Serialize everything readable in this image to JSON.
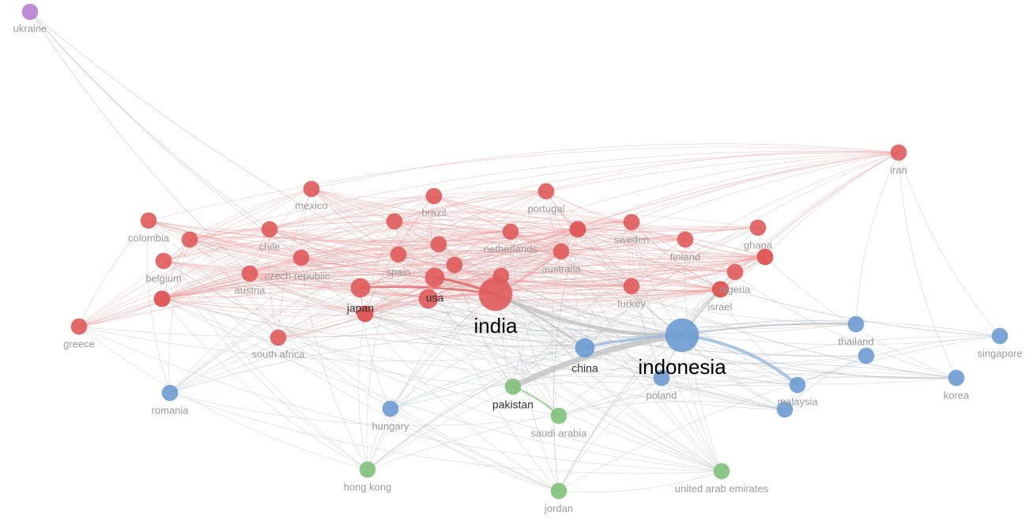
{
  "colors": {
    "red": "#e05a5a",
    "blue": "#6b9bd1",
    "green": "#80c17a",
    "purple": "#b57fd0",
    "edge_gray": "#bdbdbd",
    "edge_red": "#ef9a9a",
    "edge_blue": "#8fb4de",
    "edge_green": "#9ccf97"
  },
  "nodes": [
    {
      "id": "ukraine",
      "label": "ukraine",
      "cluster": "purple",
      "size": "s",
      "emph": "none"
    },
    {
      "id": "iran",
      "label": "iran",
      "cluster": "red",
      "size": "s",
      "emph": "none"
    },
    {
      "id": "mexico",
      "label": "mexico",
      "cluster": "red",
      "size": "s",
      "emph": "none"
    },
    {
      "id": "brazil",
      "label": "brazil",
      "cluster": "red",
      "size": "s",
      "emph": "none"
    },
    {
      "id": "portugal",
      "label": "portugal",
      "cluster": "red",
      "size": "s",
      "emph": "none"
    },
    {
      "id": "colombia",
      "label": "colombia",
      "cluster": "red",
      "size": "s",
      "emph": "none"
    },
    {
      "id": "chile",
      "label": "chile",
      "cluster": "red",
      "size": "s",
      "emph": "none"
    },
    {
      "id": "netherlands",
      "label": "netherlands",
      "cluster": "red",
      "size": "s",
      "emph": "none"
    },
    {
      "id": "sweden",
      "label": "sweden",
      "cluster": "red",
      "size": "s",
      "emph": "none"
    },
    {
      "id": "ghana",
      "label": "ghana",
      "cluster": "red",
      "size": "s",
      "emph": "none"
    },
    {
      "id": "finland",
      "label": "finland",
      "cluster": "red",
      "size": "s",
      "emph": "none"
    },
    {
      "id": "belgium",
      "label": "belgium",
      "cluster": "red",
      "size": "s",
      "emph": "none"
    },
    {
      "id": "czech",
      "label": "czech republic",
      "cluster": "red",
      "size": "s",
      "emph": "none"
    },
    {
      "id": "spain",
      "label": "spain",
      "cluster": "red",
      "size": "s",
      "emph": "none"
    },
    {
      "id": "australia",
      "label": "australia",
      "cluster": "red",
      "size": "s",
      "emph": "none"
    },
    {
      "id": "austria",
      "label": "austria",
      "cluster": "red",
      "size": "s",
      "emph": "none"
    },
    {
      "id": "nigeria",
      "label": "nigeria",
      "cluster": "red",
      "size": "s",
      "emph": "none"
    },
    {
      "id": "usa",
      "label": "usa",
      "cluster": "red",
      "size": "m",
      "emph": "dark"
    },
    {
      "id": "japan",
      "label": "japan",
      "cluster": "red",
      "size": "m",
      "emph": "dark"
    },
    {
      "id": "turkey",
      "label": "turkey",
      "cluster": "red",
      "size": "s",
      "emph": "none"
    },
    {
      "id": "israel",
      "label": "israel",
      "cluster": "red",
      "size": "s",
      "emph": "none"
    },
    {
      "id": "india",
      "label": "india",
      "cluster": "red",
      "size": "xl",
      "emph": "big"
    },
    {
      "id": "greece",
      "label": "greece",
      "cluster": "red",
      "size": "s",
      "emph": "none"
    },
    {
      "id": "south_africa",
      "label": "south africa",
      "cluster": "red",
      "size": "s",
      "emph": "none"
    },
    {
      "id": "u_de",
      "label": "",
      "cluster": "red",
      "size": "s",
      "emph": "none"
    },
    {
      "id": "u_vn",
      "label": "",
      "cluster": "red",
      "size": "s",
      "emph": "none"
    },
    {
      "id": "u_ca",
      "label": "",
      "cluster": "red",
      "size": "s",
      "emph": "none"
    },
    {
      "id": "u_fr",
      "label": "",
      "cluster": "red",
      "size": "s",
      "emph": "none"
    },
    {
      "id": "u_ie",
      "label": "",
      "cluster": "red",
      "size": "s",
      "emph": "none"
    },
    {
      "id": "u_ch",
      "label": "",
      "cluster": "red",
      "size": "s",
      "emph": "none"
    },
    {
      "id": "u_no",
      "label": "",
      "cluster": "red",
      "size": "s",
      "emph": "none"
    },
    {
      "id": "u_dk",
      "label": "",
      "cluster": "red",
      "size": "s",
      "emph": "none"
    },
    {
      "id": "u_uk",
      "label": "",
      "cluster": "red",
      "size": "m",
      "emph": "none"
    },
    {
      "id": "u_it",
      "label": "",
      "cluster": "red",
      "size": "s",
      "emph": "none"
    },
    {
      "id": "u_pe",
      "label": "",
      "cluster": "red",
      "size": "s",
      "emph": "none"
    },
    {
      "id": "u_eg",
      "label": "",
      "cluster": "red",
      "size": "s",
      "emph": "none"
    },
    {
      "id": "u_ke",
      "label": "",
      "cluster": "red",
      "size": "s",
      "emph": "none"
    },
    {
      "id": "u_nz",
      "label": "",
      "cluster": "red",
      "size": "s",
      "emph": "none"
    },
    {
      "id": "u_pk2",
      "label": "",
      "cluster": "red",
      "size": "s",
      "emph": "none"
    },
    {
      "id": "thailand",
      "label": "thailand",
      "cluster": "blue",
      "size": "s",
      "emph": "none"
    },
    {
      "id": "singapore",
      "label": "singapore",
      "cluster": "blue",
      "size": "s",
      "emph": "none"
    },
    {
      "id": "indonesia",
      "label": "indonesia",
      "cluster": "blue",
      "size": "xl",
      "emph": "big"
    },
    {
      "id": "china",
      "label": "china",
      "cluster": "blue",
      "size": "m",
      "emph": "dark"
    },
    {
      "id": "u_tw",
      "label": "",
      "cluster": "blue",
      "size": "s",
      "emph": "none"
    },
    {
      "id": "korea",
      "label": "korea",
      "cluster": "blue",
      "size": "s",
      "emph": "none"
    },
    {
      "id": "poland",
      "label": "poland",
      "cluster": "blue",
      "size": "s",
      "emph": "none"
    },
    {
      "id": "malaysia",
      "label": "malaysia",
      "cluster": "blue",
      "size": "s",
      "emph": "none"
    },
    {
      "id": "u_ph",
      "label": "",
      "cluster": "blue",
      "size": "s",
      "emph": "none"
    },
    {
      "id": "romania",
      "label": "romania",
      "cluster": "blue",
      "size": "s",
      "emph": "none"
    },
    {
      "id": "hungary",
      "label": "hungary",
      "cluster": "blue",
      "size": "s",
      "emph": "none"
    },
    {
      "id": "pakistan",
      "label": "pakistan",
      "cluster": "green",
      "size": "s",
      "emph": "dark"
    },
    {
      "id": "saudi",
      "label": "saudi arabia",
      "cluster": "green",
      "size": "s",
      "emph": "none"
    },
    {
      "id": "hongkong",
      "label": "hong kong",
      "cluster": "green",
      "size": "s",
      "emph": "none"
    },
    {
      "id": "jordan",
      "label": "jordan",
      "cluster": "green",
      "size": "s",
      "emph": "none"
    },
    {
      "id": "uae",
      "label": "united arab emirates",
      "cluster": "green",
      "size": "s",
      "emph": "none"
    }
  ]
}
